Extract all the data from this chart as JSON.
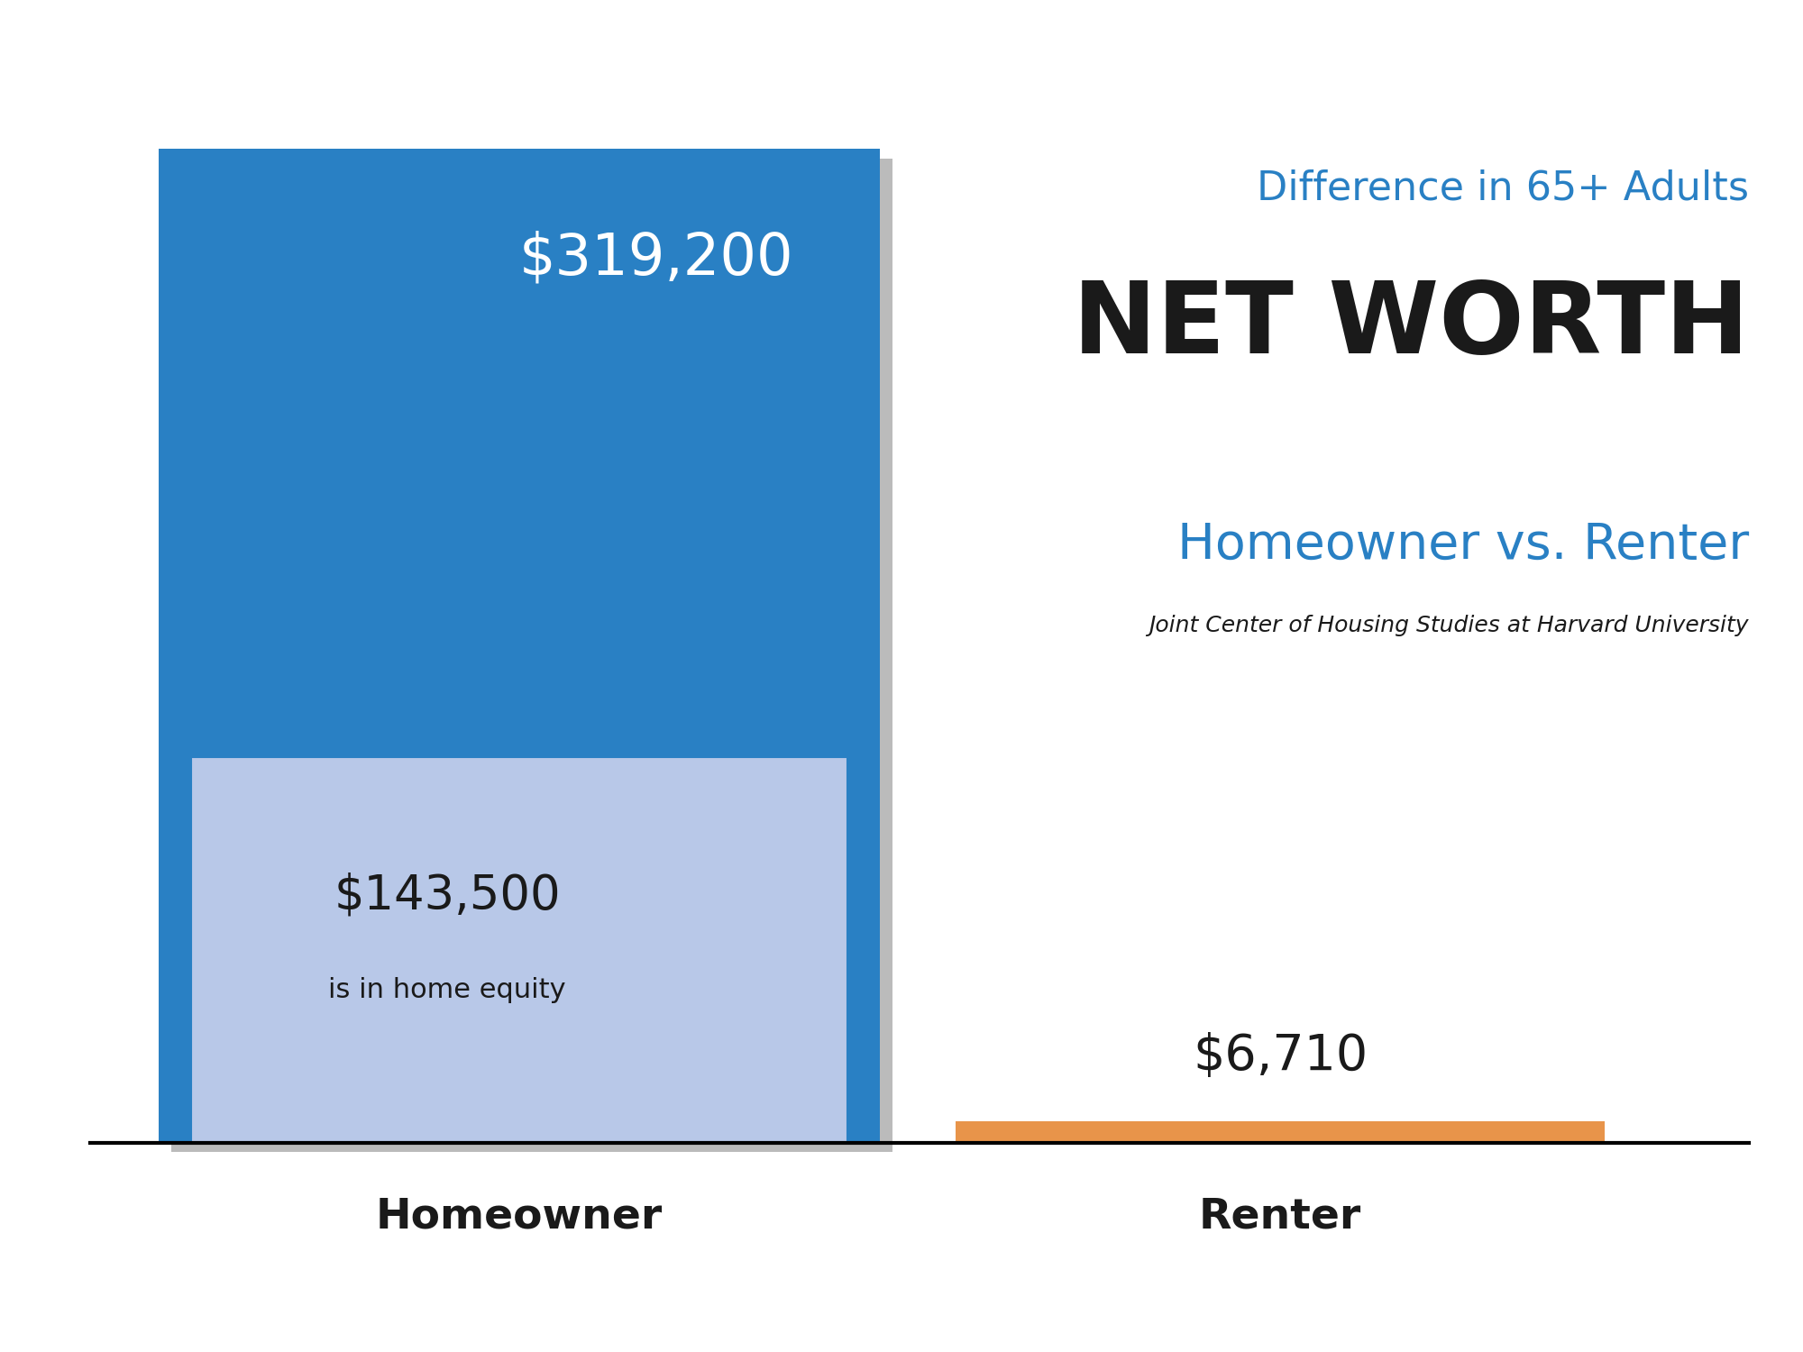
{
  "homeowner_total": 319200,
  "homeowner_equity": 143500,
  "renter_total": 6710,
  "homeowner_label": "Homeowner",
  "renter_label": "Renter",
  "homeowner_value_label": "$319,200",
  "homeowner_equity_label": "$143,500",
  "homeowner_equity_sub": "is in home equity",
  "renter_value_label": "$6,710",
  "title_line1": "Difference in 65+ Adults",
  "title_line2": "NET WORTH",
  "title_line3": "Homeowner vs. Renter",
  "source": "Joint Center of Housing Studies at Harvard University",
  "bar_blue": "#2980C4",
  "bar_light_blue": "#B8C8E8",
  "bar_orange": "#E8944A",
  "text_blue": "#2980C4",
  "text_black": "#1A1A1A",
  "text_white": "#FFFFFF",
  "background": "#FFFFFF",
  "shadow_color": "#BBBBBB"
}
